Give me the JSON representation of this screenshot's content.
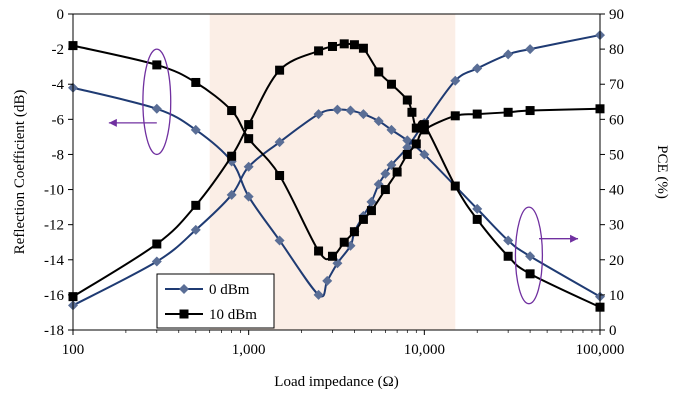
{
  "chart_data": {
    "type": "line",
    "xlabel": "Load impedance (Ω)",
    "ylabel_left": "Reflection Coefficient (dB)",
    "ylabel_right": "PCE (%)",
    "x_scale": "log",
    "xlim": [
      100,
      100000
    ],
    "ylim_left": [
      -18,
      0
    ],
    "ylim_right": [
      0,
      90
    ],
    "x_ticks": [
      100,
      1000,
      10000,
      100000
    ],
    "x_tick_labels": [
      "100",
      "1,000",
      "10,000",
      "100,000"
    ],
    "y_left_ticks": [
      0,
      -2,
      -4,
      -6,
      -8,
      -10,
      -12,
      -14,
      -16,
      -18
    ],
    "y_left_tick_labels": [
      "0",
      "-2",
      "-4",
      "-6",
      "-8",
      "-10",
      "-12",
      "-14",
      "-16",
      "-18"
    ],
    "y_right_ticks": [
      0,
      10,
      20,
      30,
      40,
      50,
      60,
      70,
      80,
      90
    ],
    "y_right_tick_labels": [
      "0",
      "10",
      "20",
      "30",
      "40",
      "50",
      "60",
      "70",
      "80",
      "90"
    ],
    "shaded_region_x": [
      600,
      15000
    ],
    "shaded_color": "#fbeee6",
    "grid": false,
    "legend_position": "bottom-left",
    "series": [
      {
        "name": "0 dBm",
        "axis": "left",
        "quantity": "reflection",
        "marker": "diamond",
        "color": "#1f3b73",
        "marker_color": "#5a6e96",
        "points": [
          [
            100,
            -16.6
          ],
          [
            300,
            -14.1
          ],
          [
            500,
            -12.3
          ],
          [
            800,
            -10.3
          ],
          [
            1000,
            -8.7
          ],
          [
            1500,
            -7.3
          ],
          [
            2500,
            -5.7
          ],
          [
            3200,
            -5.45
          ],
          [
            3800,
            -5.5
          ],
          [
            4500,
            -5.7
          ],
          [
            5500,
            -6.1
          ],
          [
            6500,
            -6.6
          ],
          [
            8000,
            -7.2
          ],
          [
            10000,
            -8.0
          ],
          [
            20000,
            -11.1
          ],
          [
            30000,
            -12.9
          ],
          [
            40000,
            -13.8
          ],
          [
            100000,
            -16.1
          ]
        ]
      },
      {
        "name": "0 dBm",
        "axis": "right",
        "quantity": "pce",
        "marker": "diamond",
        "color": "#1f3b73",
        "marker_color": "#5a6e96",
        "points": [
          [
            100,
            69.0
          ],
          [
            300,
            63.0
          ],
          [
            500,
            57.0
          ],
          [
            800,
            48.0
          ],
          [
            1000,
            38.0
          ],
          [
            1500,
            25.5
          ],
          [
            2500,
            10.0
          ],
          [
            2800,
            14.0
          ],
          [
            3200,
            19.0
          ],
          [
            3800,
            24.0
          ],
          [
            4000,
            28.0
          ],
          [
            4500,
            32.5
          ],
          [
            5000,
            36.5
          ],
          [
            5500,
            41.5
          ],
          [
            6000,
            44.5
          ],
          [
            6500,
            47.0
          ],
          [
            8000,
            52.0
          ],
          [
            10000,
            59.0
          ],
          [
            15000,
            71.0
          ],
          [
            20000,
            74.5
          ],
          [
            30000,
            78.5
          ],
          [
            40000,
            80.0
          ],
          [
            100000,
            84.0
          ]
        ]
      },
      {
        "name": "10 dBm",
        "axis": "left",
        "quantity": "reflection",
        "marker": "square",
        "color": "#000000",
        "marker_color": "#000000",
        "points": [
          [
            100,
            -16.1
          ],
          [
            300,
            -13.1
          ],
          [
            500,
            -10.9
          ],
          [
            800,
            -8.1
          ],
          [
            1000,
            -6.3
          ],
          [
            1500,
            -3.2
          ],
          [
            2500,
            -2.1
          ],
          [
            3000,
            -1.85
          ],
          [
            3500,
            -1.7
          ],
          [
            4000,
            -1.75
          ],
          [
            4500,
            -1.95
          ],
          [
            5500,
            -3.3
          ],
          [
            6500,
            -4.0
          ],
          [
            8000,
            -4.9
          ],
          [
            8500,
            -5.6
          ],
          [
            9000,
            -6.5
          ],
          [
            10000,
            -6.3
          ],
          [
            15000,
            -9.8
          ],
          [
            20000,
            -11.7
          ],
          [
            30000,
            -13.8
          ],
          [
            40000,
            -14.8
          ],
          [
            100000,
            -16.7
          ]
        ]
      },
      {
        "name": "10 dBm",
        "axis": "right",
        "quantity": "pce",
        "marker": "square",
        "color": "#000000",
        "marker_color": "#000000",
        "points": [
          [
            100,
            81.0
          ],
          [
            300,
            75.5
          ],
          [
            500,
            70.5
          ],
          [
            800,
            62.5
          ],
          [
            1000,
            54.5
          ],
          [
            1500,
            44.0
          ],
          [
            2500,
            22.5
          ],
          [
            3000,
            21.0
          ],
          [
            3500,
            25.0
          ],
          [
            4000,
            28.0
          ],
          [
            4500,
            31.5
          ],
          [
            5000,
            34.0
          ],
          [
            6000,
            40.0
          ],
          [
            7000,
            45.0
          ],
          [
            8000,
            50.0
          ],
          [
            9000,
            53.0
          ],
          [
            10000,
            57.0
          ],
          [
            15000,
            61.0
          ],
          [
            20000,
            61.5
          ],
          [
            30000,
            62.0
          ],
          [
            40000,
            62.5
          ],
          [
            100000,
            63.0
          ]
        ]
      }
    ],
    "annotations": [
      {
        "type": "ellipse",
        "x": 300,
        "y_left": -5.0,
        "x_span": [
          250,
          360
        ],
        "y_span": [
          -2.0,
          -8.0
        ],
        "color": "#7030a0"
      },
      {
        "type": "arrow",
        "from_x": 300,
        "from_y_left": -6.2,
        "to_x": 160,
        "to_y_left": -6.2,
        "color": "#7030a0",
        "direction": "left"
      },
      {
        "type": "ellipse",
        "x": 40000,
        "y_left": -14.0,
        "x_span": [
          33000,
          47000
        ],
        "y_span": [
          -11.0,
          -16.5
        ],
        "color": "#7030a0"
      },
      {
        "type": "arrow",
        "from_x": 45000,
        "from_y_left": -12.8,
        "to_x": 75000,
        "to_y_left": -12.8,
        "color": "#7030a0",
        "direction": "right"
      }
    ]
  }
}
